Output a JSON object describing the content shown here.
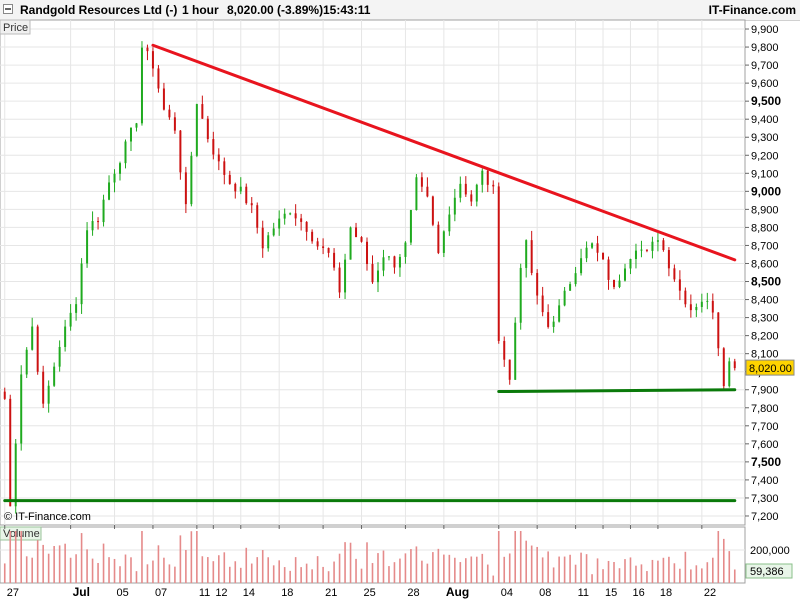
{
  "header": {
    "title": "Randgold Resources Ltd (-)",
    "timeframe": "1 hour",
    "price": "8,020.00 (-3.89%)",
    "time": "15:43:11",
    "source": "IT-Finance.com"
  },
  "chart_data": {
    "type": "candlestick",
    "price_panel_title": "Price",
    "volume_panel_title": "Volume",
    "watermark": "© IT-Finance.com",
    "y_range": [
      7150,
      9950
    ],
    "y_ticks": [
      "7,200",
      "7,300",
      "7,400",
      "7,500",
      "7,600",
      "7,700",
      "7,800",
      "7,900",
      "8,000",
      "8,100",
      "8,200",
      "8,300",
      "8,400",
      "8,500",
      "8,600",
      "8,700",
      "8,800",
      "8,900",
      "9,000",
      "9,100",
      "9,200",
      "9,300",
      "9,400",
      "9,500",
      "9,600",
      "9,700",
      "9,800",
      "9,900"
    ],
    "y_ticks_bold": [
      "7,500",
      "8,000",
      "8,500",
      "9,000",
      "9,500"
    ],
    "x_ticks": [
      "27",
      "Jul",
      "05",
      "07",
      "11",
      "12",
      "14",
      "18",
      "21",
      "25",
      "28",
      "Aug",
      "04",
      "08",
      "11",
      "15",
      "16",
      "18",
      "22"
    ],
    "x_ticks_bold": [
      "Jul",
      "Aug"
    ],
    "last_price": "8,020.00",
    "last_price_value": 8020,
    "volume_ticks": [
      "200,000"
    ],
    "last_volume": "59,386",
    "trendlines": [
      {
        "name": "resistance",
        "color": "#e8141e",
        "from": {
          "bar": 27,
          "price": 9810
        },
        "to": {
          "bar": 133,
          "price": 8620
        }
      },
      {
        "name": "support-upper",
        "color": "#0a7a0a",
        "from": {
          "bar": 90,
          "price": 7890
        },
        "to": {
          "bar": 133,
          "price": 7900
        }
      },
      {
        "name": "support-lower",
        "color": "#0a7a0a",
        "from": {
          "bar": 0,
          "price": 7285
        },
        "to": {
          "bar": 133,
          "price": 7285
        }
      }
    ],
    "anchors": [
      [
        0,
        7850
      ],
      [
        1,
        7250
      ],
      [
        3,
        8000
      ],
      [
        5,
        8250
      ],
      [
        7,
        7800
      ],
      [
        10,
        8150
      ],
      [
        13,
        8400
      ],
      [
        15,
        8800
      ],
      [
        17,
        8850
      ],
      [
        19,
        9050
      ],
      [
        22,
        9250
      ],
      [
        24,
        9400
      ],
      [
        25,
        9800
      ],
      [
        27,
        9700
      ],
      [
        29,
        9450
      ],
      [
        31,
        9350
      ],
      [
        33,
        8900
      ],
      [
        35,
        9500
      ],
      [
        37,
        9300
      ],
      [
        39,
        9150
      ],
      [
        41,
        9050
      ],
      [
        43,
        9000
      ],
      [
        45,
        8900
      ],
      [
        47,
        8700
      ],
      [
        49,
        8800
      ],
      [
        52,
        8900
      ],
      [
        55,
        8800
      ],
      [
        57,
        8700
      ],
      [
        59,
        8650
      ],
      [
        61,
        8450
      ],
      [
        63,
        8800
      ],
      [
        65,
        8700
      ],
      [
        67,
        8500
      ],
      [
        69,
        8650
      ],
      [
        71,
        8600
      ],
      [
        73,
        8700
      ],
      [
        75,
        9050
      ],
      [
        77,
        8950
      ],
      [
        79,
        8650
      ],
      [
        81,
        8900
      ],
      [
        83,
        9050
      ],
      [
        85,
        8950
      ],
      [
        87,
        9100
      ],
      [
        89,
        9000
      ],
      [
        90,
        8200
      ],
      [
        92,
        7950
      ],
      [
        94,
        8600
      ],
      [
        95,
        8700
      ],
      [
        97,
        8400
      ],
      [
        99,
        8250
      ],
      [
        101,
        8350
      ],
      [
        103,
        8500
      ],
      [
        105,
        8650
      ],
      [
        107,
        8700
      ],
      [
        109,
        8600
      ],
      [
        111,
        8450
      ],
      [
        113,
        8600
      ],
      [
        115,
        8700
      ],
      [
        117,
        8650
      ],
      [
        119,
        8750
      ],
      [
        121,
        8600
      ],
      [
        123,
        8450
      ],
      [
        125,
        8350
      ],
      [
        127,
        8400
      ],
      [
        129,
        8350
      ],
      [
        130,
        8150
      ],
      [
        131,
        7950
      ],
      [
        132,
        8050
      ],
      [
        133,
        8020
      ]
    ]
  },
  "colors": {
    "up": "#1faa1f",
    "down": "#cc1111",
    "volume": "#e58a8a",
    "grid": "#e6e6e6",
    "panel_border": "#a0a0a0",
    "badge_bg": "#ffd400",
    "volume_badge_bg": "#e8f5e8"
  }
}
